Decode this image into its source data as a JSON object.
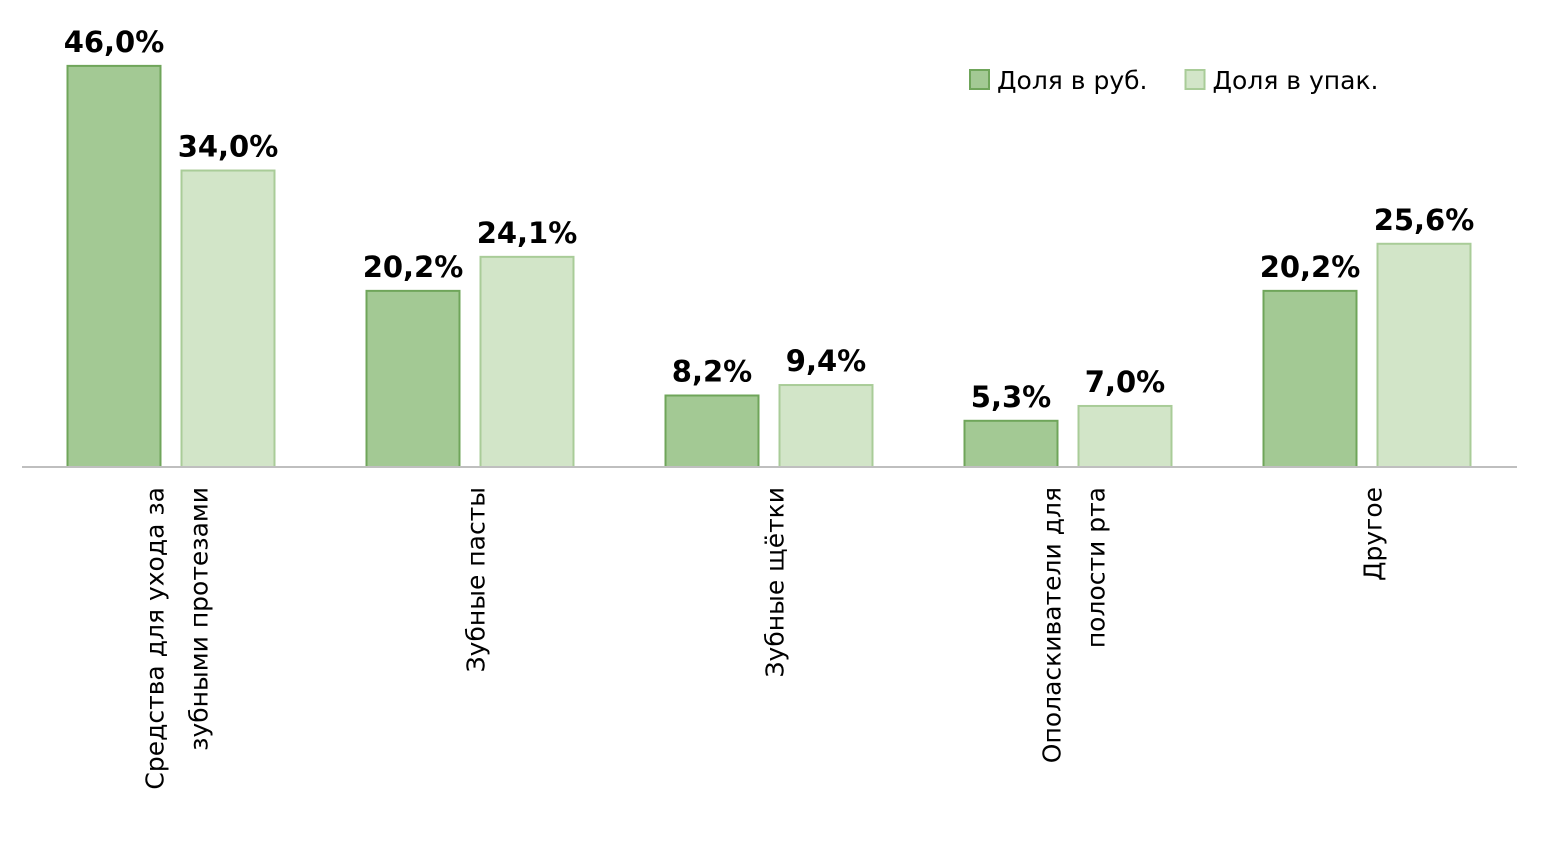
{
  "chart_data": {
    "type": "bar",
    "categories": [
      "Средства для ухода за зубными протезами",
      "Зубные пасты",
      "Зубные щётки",
      "Ополаскиватели для полости рта",
      "Другое"
    ],
    "series": [
      {
        "name": "Доля в руб.",
        "color": "#a3c994",
        "values": [
          46.0,
          20.2,
          8.2,
          5.3,
          20.2
        ],
        "value_labels": [
          "46,0%",
          "20,2%",
          "8,2%",
          "5,3%",
          "20,2%"
        ]
      },
      {
        "name": "Доля в упак.",
        "color": "#d2e5c8",
        "values": [
          34.0,
          24.1,
          9.4,
          7.0,
          25.6
        ],
        "value_labels": [
          "34,0%",
          "24,1%",
          "9,4%",
          "7,0%",
          "25,6%"
        ]
      }
    ],
    "ylim": [
      0,
      50
    ],
    "legend": "top-right"
  }
}
